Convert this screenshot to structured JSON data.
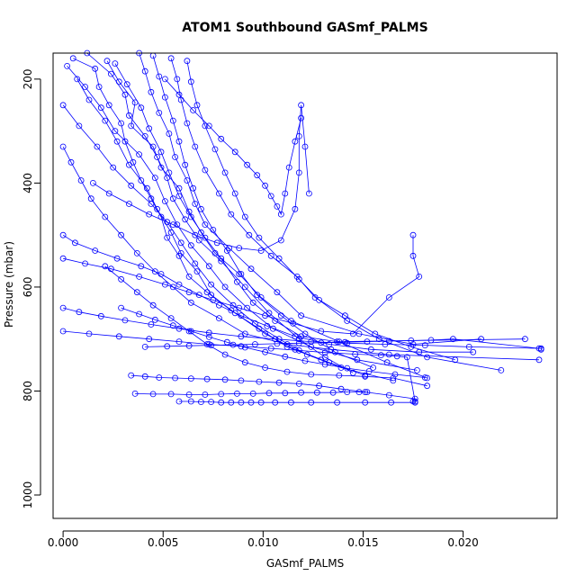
{
  "chart_data": {
    "type": "scatter",
    "title": "ATOM1 Southbound GASmf_PALMS",
    "xlabel": "GASmf_PALMS",
    "ylabel": "Pressure (mbar)",
    "xlim": [
      -0.0005,
      0.0247
    ],
    "ylim": [
      1045,
      150
    ],
    "y_reversed": true,
    "x_ticks": [
      "0.000",
      "0.005",
      "0.010",
      "0.015",
      "0.020"
    ],
    "y_ticks": [
      "200",
      "400",
      "600",
      "800",
      "1000"
    ],
    "grid": false,
    "legend": "none",
    "color": "#0000ff",
    "markers": "open-circle",
    "connected_lines": true,
    "series": [
      {
        "x": [
          0.0005,
          0.0016,
          0.0018,
          0.0023,
          0.0029,
          0.0031,
          0.0035,
          0.0039,
          0.0044,
          0.0049,
          0.0052,
          0.0058,
          0.0063,
          0.0072,
          0.0084,
          0.0098,
          0.0112,
          0.0129
        ],
        "y": [
          160,
          180,
          215,
          250,
          285,
          320,
          360,
          395,
          430,
          465,
          505,
          540,
          580,
          610,
          645,
          680,
          715,
          740
        ]
      },
      {
        "x": [
          0.0012,
          0.0024,
          0.0031,
          0.0033,
          0.0041,
          0.0047,
          0.0052,
          0.0055,
          0.0061,
          0.0068,
          0.0079,
          0.0091,
          0.0103,
          0.0118,
          0.0131,
          0.0145
        ],
        "y": [
          150,
          190,
          230,
          270,
          310,
          350,
          390,
          430,
          470,
          510,
          550,
          600,
          650,
          700,
          735,
          765
        ]
      },
      {
        "x": [
          0.0022,
          0.0028,
          0.0036,
          0.0034,
          0.0045,
          0.0049,
          0.0058,
          0.0063,
          0.0069,
          0.0076,
          0.0088,
          0.0099,
          0.0114,
          0.0138,
          0.0162,
          0.0182
        ],
        "y": [
          165,
          205,
          245,
          290,
          330,
          370,
          410,
          455,
          495,
          535,
          575,
          620,
          665,
          705,
          745,
          775
        ]
      },
      {
        "x": [
          0.0038,
          0.0041,
          0.0044,
          0.0048,
          0.0053,
          0.0056,
          0.0062,
          0.0066,
          0.0071,
          0.0083,
          0.0094,
          0.0107,
          0.0119,
          0.0148,
          0.0175,
          0.0209
        ],
        "y": [
          150,
          185,
          225,
          265,
          305,
          350,
          395,
          440,
          480,
          525,
          565,
          610,
          655,
          690,
          710,
          700
        ]
      },
      {
        "x": [
          0.0007,
          0.0013,
          0.0021,
          0.0027,
          0.0033,
          0.0042,
          0.0047,
          0.0054,
          0.0059,
          0.0067,
          0.0074,
          0.0086,
          0.0101,
          0.0116,
          0.0133,
          0.0151
        ],
        "y": [
          200,
          240,
          280,
          320,
          365,
          410,
          450,
          495,
          535,
          570,
          615,
          650,
          690,
          720,
          745,
          770
        ]
      },
      {
        "x": [
          0.0002,
          0.0011,
          0.0019,
          0.0026,
          0.0038,
          0.0046,
          0.0051,
          0.0057,
          0.0064,
          0.0073,
          0.0081,
          0.0092,
          0.0105,
          0.0124,
          0.0147,
          0.0177
        ],
        "y": [
          175,
          215,
          255,
          300,
          345,
          390,
          435,
          480,
          520,
          560,
          600,
          640,
          680,
          715,
          740,
          760
        ]
      },
      {
        "x": [
          0.0045,
          0.0048,
          0.0051,
          0.0055,
          0.0058,
          0.0061,
          0.0065,
          0.0069,
          0.0075,
          0.0082,
          0.0089,
          0.0097,
          0.0109,
          0.0121,
          0.0136,
          0.0155
        ],
        "y": [
          155,
          195,
          235,
          280,
          320,
          365,
          410,
          450,
          490,
          530,
          575,
          615,
          655,
          690,
          725,
          755
        ]
      },
      {
        "x": [
          0.0,
          0.0008,
          0.0017,
          0.0025,
          0.0034,
          0.0044,
          0.0052,
          0.0059,
          0.0066,
          0.0074,
          0.0085,
          0.0096,
          0.0108,
          0.0122,
          0.0139,
          0.0165
        ],
        "y": [
          250,
          290,
          330,
          370,
          405,
          440,
          475,
          515,
          555,
          595,
          635,
          670,
          700,
          730,
          755,
          780
        ]
      },
      {
        "x": [
          0.0054,
          0.0057,
          0.0059,
          0.0062,
          0.0066,
          0.0071,
          0.0078,
          0.0084,
          0.0093,
          0.0104,
          0.0117,
          0.0126,
          0.0141,
          0.0156,
          0.0174,
          0.0196
        ],
        "y": [
          160,
          200,
          240,
          285,
          330,
          375,
          420,
          460,
          500,
          540,
          580,
          620,
          655,
          690,
          715,
          740
        ]
      },
      {
        "x": [
          0.0,
          0.0004,
          0.0009,
          0.0014,
          0.0021,
          0.0029,
          0.0037,
          0.0046,
          0.0055,
          0.0064,
          0.0078,
          0.0091,
          0.0112,
          0.0134,
          0.0163,
          0.0238
        ],
        "y": [
          330,
          360,
          395,
          430,
          465,
          500,
          535,
          570,
          600,
          630,
          660,
          690,
          710,
          720,
          730,
          740
        ]
      },
      {
        "x": [
          0.0026,
          0.0032,
          0.0039,
          0.0043,
          0.0049,
          0.0053,
          0.0058,
          0.0064,
          0.0071,
          0.0079,
          0.0087,
          0.0095,
          0.0106,
          0.0119,
          0.0137,
          0.0231
        ],
        "y": [
          170,
          210,
          255,
          295,
          340,
          380,
          425,
          465,
          505,
          545,
          590,
          630,
          665,
          695,
          705,
          700
        ]
      },
      {
        "x": [
          0.0062,
          0.0064,
          0.0067,
          0.0071,
          0.0076,
          0.0081,
          0.0086,
          0.0091,
          0.0098,
          0.0108,
          0.0118,
          0.0128,
          0.0142,
          0.0158,
          0.0182,
          0.0219
        ],
        "y": [
          165,
          205,
          250,
          290,
          335,
          380,
          420,
          465,
          505,
          545,
          585,
          625,
          665,
          700,
          735,
          760
        ]
      },
      {
        "x": [
          0.0,
          0.0006,
          0.0016,
          0.0027,
          0.0039,
          0.0049,
          0.0058,
          0.0068,
          0.0078,
          0.0089,
          0.0102,
          0.0116,
          0.0133,
          0.0154,
          0.0178,
          0.0205
        ],
        "y": [
          500,
          515,
          530,
          545,
          560,
          575,
          595,
          615,
          635,
          655,
          675,
          695,
          710,
          720,
          725,
          725
        ]
      },
      {
        "x": [
          0.0,
          0.0011,
          0.0024,
          0.0038,
          0.0051,
          0.0063,
          0.0075,
          0.0088,
          0.0101,
          0.0115,
          0.0129,
          0.0145,
          0.0163,
          0.0178,
          0.0175,
          0.0175
        ],
        "y": [
          545,
          555,
          565,
          580,
          595,
          610,
          625,
          640,
          655,
          670,
          685,
          690,
          620,
          580,
          540,
          500
        ]
      },
      {
        "x": [
          0.0,
          0.0008,
          0.0019,
          0.0031,
          0.0044,
          0.0058,
          0.0073,
          0.0089,
          0.0106,
          0.0124,
          0.0142,
          0.0161,
          0.0181,
          0.0203,
          0.0239,
          0.0239
        ],
        "y": [
          640,
          648,
          656,
          664,
          672,
          680,
          688,
          695,
          700,
          705,
          708,
          710,
          712,
          715,
          718,
          720
        ]
      },
      {
        "x": [
          0.0,
          0.0013,
          0.0028,
          0.0043,
          0.0058,
          0.0073,
          0.0089,
          0.0104,
          0.0118,
          0.0131,
          0.0146,
          0.0159,
          0.0167,
          0.0172,
          0.0176,
          0.0175
        ],
        "y": [
          685,
          690,
          695,
          700,
          705,
          710,
          714,
          718,
          722,
          726,
          729,
          731,
          733,
          735,
          820,
          820
        ]
      },
      {
        "x": [
          0.0021,
          0.0029,
          0.0037,
          0.0045,
          0.0054,
          0.0063,
          0.0072,
          0.0081,
          0.0091,
          0.0101,
          0.0112,
          0.0124,
          0.0138,
          0.0151,
          0.0165,
          0.0182
        ],
        "y": [
          560,
          585,
          610,
          635,
          660,
          685,
          710,
          730,
          745,
          755,
          763,
          768,
          770,
          772,
          775,
          790
        ]
      },
      {
        "x": [
          0.0034,
          0.0041,
          0.0048,
          0.0056,
          0.0064,
          0.0072,
          0.0081,
          0.0089,
          0.0098,
          0.0108,
          0.0118,
          0.0128,
          0.0139,
          0.0151,
          0.0163,
          0.0176
        ],
        "y": [
          770,
          772,
          774,
          775,
          776,
          777,
          778,
          780,
          782,
          784,
          786,
          790,
          796,
          802,
          808,
          815
        ]
      },
      {
        "x": [
          0.0036,
          0.0045,
          0.0054,
          0.0063,
          0.0071,
          0.0079,
          0.0087,
          0.0095,
          0.0103,
          0.0111,
          0.0119,
          0.0127,
          0.0135,
          0.0142,
          0.0148,
          0.0152
        ],
        "y": [
          805,
          806,
          806,
          807,
          807,
          806,
          805,
          805,
          804,
          804,
          803,
          803,
          803,
          802,
          802,
          802
        ]
      },
      {
        "x": [
          0.0058,
          0.0064,
          0.0069,
          0.0074,
          0.0079,
          0.0084,
          0.0089,
          0.0094,
          0.0099,
          0.0106,
          0.0114,
          0.0124,
          0.0137,
          0.0151,
          0.0164,
          0.0176
        ],
        "y": [
          820,
          820,
          821,
          821,
          822,
          822,
          822,
          822,
          822,
          822,
          822,
          822,
          822,
          822,
          822,
          822
        ]
      },
      {
        "x": [
          0.0041,
          0.0052,
          0.0063,
          0.0074,
          0.0085,
          0.0096,
          0.0107,
          0.0118,
          0.0129,
          0.0141,
          0.0152,
          0.0163,
          0.0174,
          0.0184,
          0.0195,
          0.0238
        ],
        "y": [
          715,
          714,
          713,
          712,
          711,
          710,
          709,
          708,
          707,
          706,
          705,
          704,
          703,
          702,
          700,
          718
        ]
      },
      {
        "x": [
          0.0029,
          0.0038,
          0.0046,
          0.0055,
          0.0064,
          0.0073,
          0.0082,
          0.0091,
          0.0101,
          0.0111,
          0.0121,
          0.0131,
          0.0142,
          0.0153,
          0.0166,
          0.0181
        ],
        "y": [
          640,
          652,
          663,
          674,
          685,
          696,
          706,
          716,
          725,
          734,
          742,
          749,
          756,
          762,
          768,
          774
        ]
      },
      {
        "x": [
          0.0015,
          0.0023,
          0.0033,
          0.0043,
          0.0055,
          0.0066,
          0.0077,
          0.0088,
          0.0099,
          0.0109,
          0.0116,
          0.0118,
          0.0118,
          0.0119,
          0.0121,
          0.0123
        ],
        "y": [
          400,
          420,
          440,
          460,
          480,
          500,
          515,
          525,
          530,
          510,
          450,
          380,
          310,
          250,
          330,
          420
        ]
      },
      {
        "x": [
          0.0051,
          0.0058,
          0.0065,
          0.0073,
          0.0079,
          0.0086,
          0.0092,
          0.0097,
          0.0101,
          0.0104,
          0.0107,
          0.0109,
          0.0111,
          0.0113,
          0.0116,
          0.0119
        ],
        "y": [
          200,
          230,
          260,
          290,
          315,
          340,
          365,
          385,
          405,
          425,
          445,
          460,
          420,
          370,
          320,
          275
        ]
      }
    ]
  }
}
